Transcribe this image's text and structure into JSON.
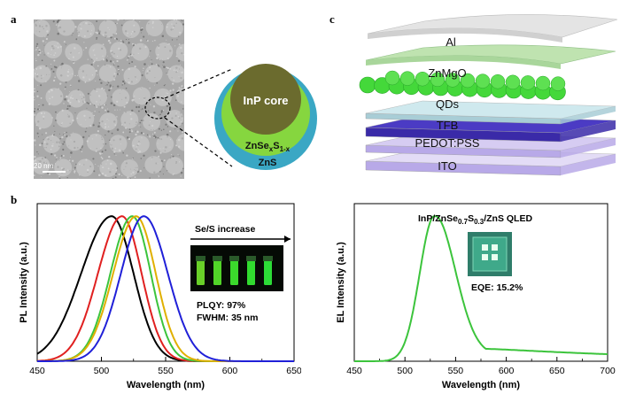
{
  "panels": {
    "a": "a",
    "b": "b",
    "c": "c"
  },
  "panel_a": {
    "scale_bar": "20 nm",
    "labels": {
      "core": "InP core",
      "shell_inner_base": "ZnSe",
      "shell_inner_x": "x",
      "shell_inner_s": "S",
      "shell_inner_sub": "1-x",
      "shell_outer": "ZnS"
    },
    "colors": {
      "core": "#6b6b2e",
      "shell_inner": "#86d63f",
      "shell_outer": "#3aa7c4"
    }
  },
  "panel_c": {
    "layers": [
      "Al",
      "ZnMgO",
      "QDs",
      "TFB",
      "PEDOT:PSS",
      "ITO"
    ],
    "colors": {
      "Al": "#e4e4e4",
      "ZnMgO": "#bfe3b0",
      "QDs": "#44d83a",
      "TFB": "#cfe9ee",
      "TFB_base": "#3a2aa8",
      "PEDOT": "#b8a9e8"
    }
  },
  "chart_data": [
    {
      "type": "line",
      "xlabel": "Wavelength (nm)",
      "ylabel": "PL Intensity (a.u.)",
      "xlim": [
        450,
        650
      ],
      "xticks": [
        "450",
        "500",
        "550",
        "600",
        "650"
      ],
      "annotations": {
        "arrow_label": "Se/S increase",
        "plqy": "PLQY: 97%",
        "fwhm": "FWHM: 35 nm"
      },
      "series": [
        {
          "color": "#000000",
          "peak": 508,
          "left_width": 28,
          "right_width": 20
        },
        {
          "color": "#e02020",
          "peak": 516,
          "left_width": 22,
          "right_width": 18
        },
        {
          "color": "#3cc43c",
          "peak": 524,
          "left_width": 20,
          "right_width": 17
        },
        {
          "color": "#e0b000",
          "peak": 527,
          "left_width": 21,
          "right_width": 18
        },
        {
          "color": "#2020d8",
          "peak": 533,
          "left_width": 21,
          "right_width": 22
        }
      ]
    },
    {
      "type": "line",
      "title_base": "InP/ZnSe",
      "title_sub1": "0.7",
      "title_mid": "S",
      "title_sub2": "0.3",
      "title_end": "/ZnS QLED",
      "xlabel": "Wavelength (nm)",
      "ylabel": "EL Intensity (a.u.)",
      "xlim": [
        450,
        700
      ],
      "xticks": [
        "450",
        "500",
        "550",
        "600",
        "650",
        "700"
      ],
      "annotations": {
        "eqe": "EQE: 15.2%"
      },
      "series": [
        {
          "color": "#3cc43c",
          "peak": 529,
          "left_width": 17,
          "right_width": 24,
          "tail": 0.06
        }
      ]
    }
  ]
}
